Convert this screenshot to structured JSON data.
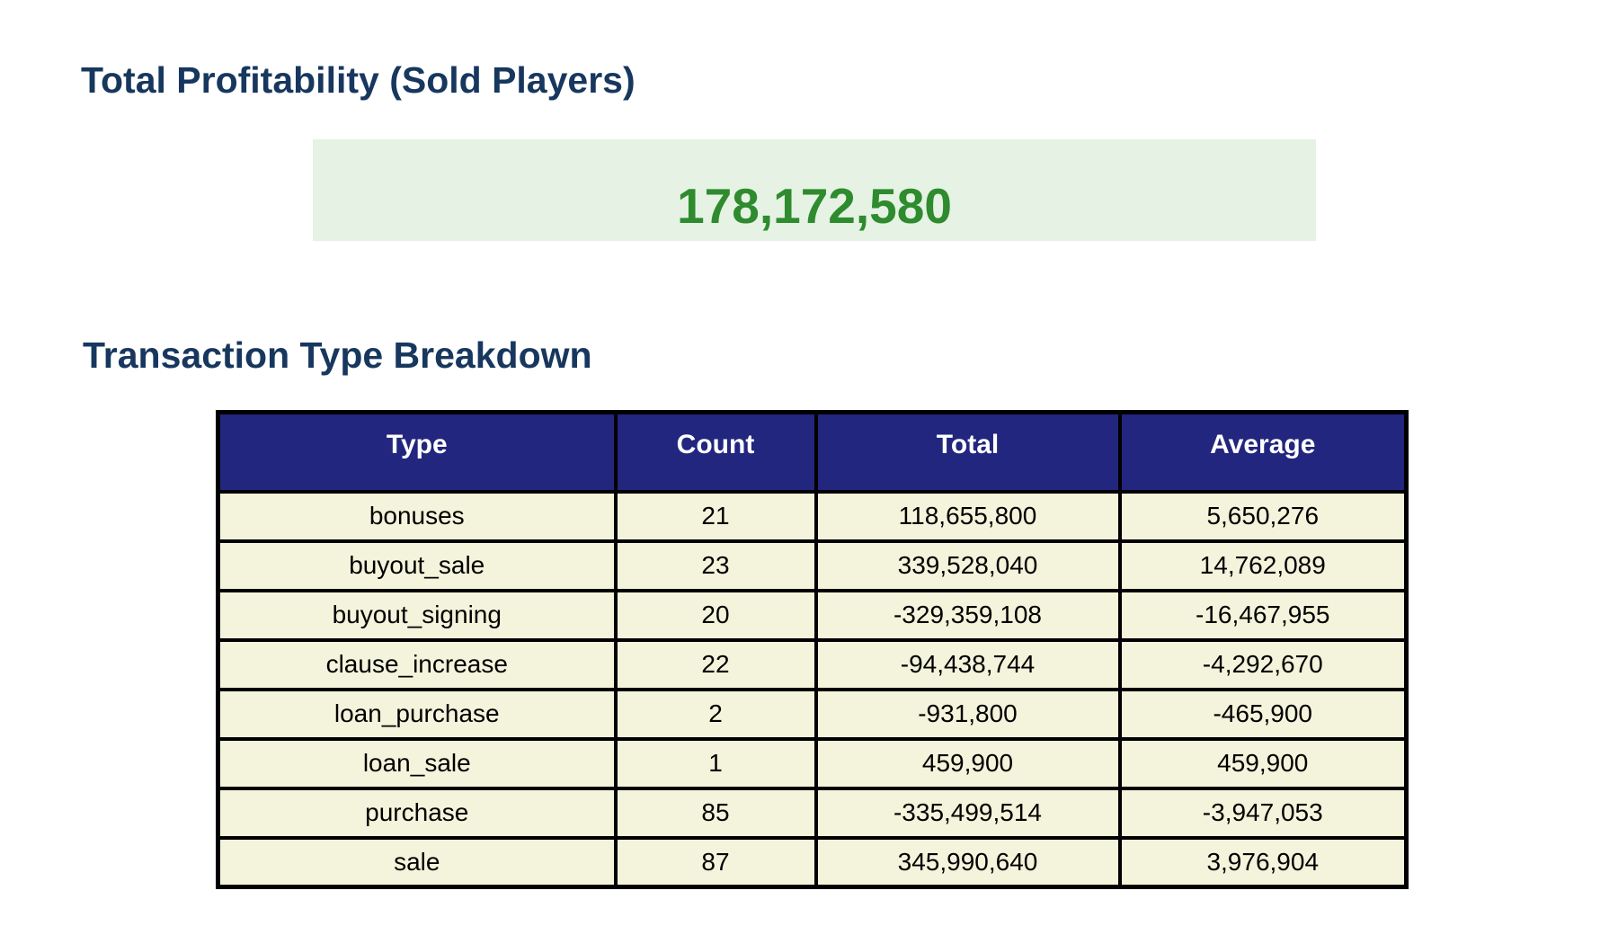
{
  "sections": {
    "profitability": {
      "title": "Total Profitability (Sold Players)",
      "total_value": "178,172,580"
    },
    "breakdown": {
      "title": "Transaction Type Breakdown"
    }
  },
  "table": {
    "columns": [
      "Type",
      "Count",
      "Total",
      "Average"
    ],
    "rows": [
      [
        "bonuses",
        "21",
        "118,655,800",
        "5,650,276"
      ],
      [
        "buyout_sale",
        "23",
        "339,528,040",
        "14,762,089"
      ],
      [
        "buyout_signing",
        "20",
        "-329,359,108",
        "-16,467,955"
      ],
      [
        "clause_increase",
        "22",
        "-94,438,744",
        "-4,292,670"
      ],
      [
        "loan_purchase",
        "2",
        "-931,800",
        "-465,900"
      ],
      [
        "loan_sale",
        "1",
        "459,900",
        "459,900"
      ],
      [
        "purchase",
        "85",
        "-335,499,514",
        "-3,947,053"
      ],
      [
        "sale",
        "87",
        "345,990,640",
        "3,976,904"
      ]
    ]
  },
  "colors": {
    "title_navy": "#17375E",
    "header_bg": "#22267E",
    "header_text": "#FFFFFF",
    "row_bg": "#F4F4DC",
    "row_text": "#000000",
    "profit_bg": "#E6F2E4",
    "profit_green": "#2E8B2E",
    "border_black": "#000000"
  }
}
